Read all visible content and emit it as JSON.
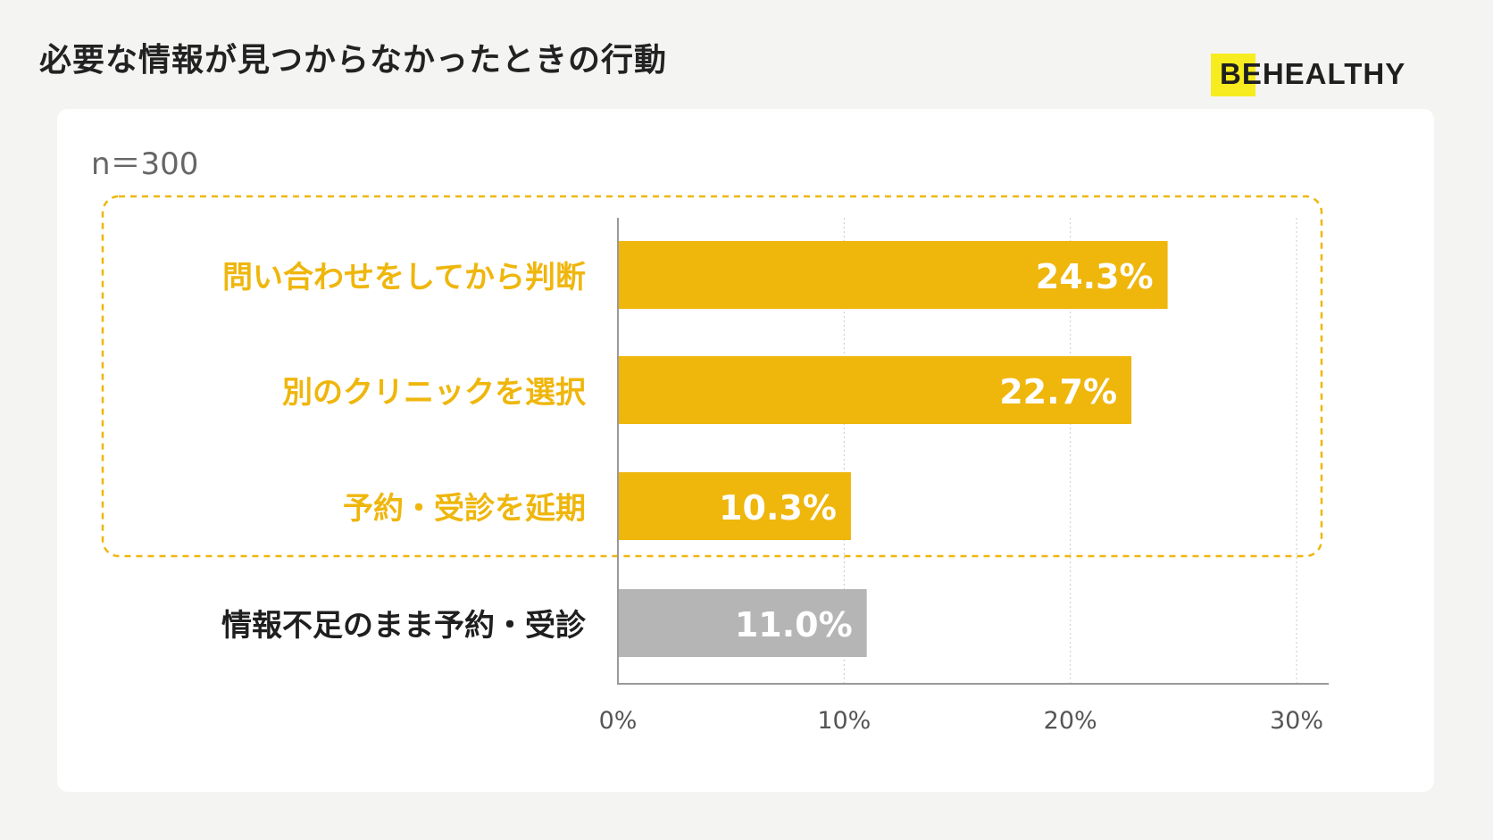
{
  "header": {
    "title": "必要な情報が見つからなかったときの行動"
  },
  "brand": {
    "name": "BEHEALTHY"
  },
  "card": {
    "sample_size": "n＝300"
  },
  "colors": {
    "accent": "#efb60c",
    "gray_bar": "#b5b5b5",
    "dark_label": "#1f1f1f",
    "brand_yellow": "#f7ec1f"
  },
  "chart_data": {
    "type": "bar",
    "orientation": "horizontal",
    "categories": [
      "問い合わせをしてから判断",
      "別のクリニックを選択",
      "予約・受診を延期",
      "情報不足のまま予約・受診"
    ],
    "values": [
      24.3,
      22.7,
      10.3,
      11.0
    ],
    "value_labels": [
      "24.3%",
      "22.7%",
      "10.3%",
      "11.0%"
    ],
    "bar_colors": [
      "#efb60c",
      "#efb60c",
      "#efb60c",
      "#b5b5b5"
    ],
    "highlighted": [
      true,
      true,
      true,
      false
    ],
    "xlim": [
      0,
      30
    ],
    "x_ticks": [
      0,
      10,
      20,
      30
    ],
    "x_tick_labels": [
      "0%",
      "10%",
      "20%",
      "30%"
    ],
    "grid": true
  }
}
